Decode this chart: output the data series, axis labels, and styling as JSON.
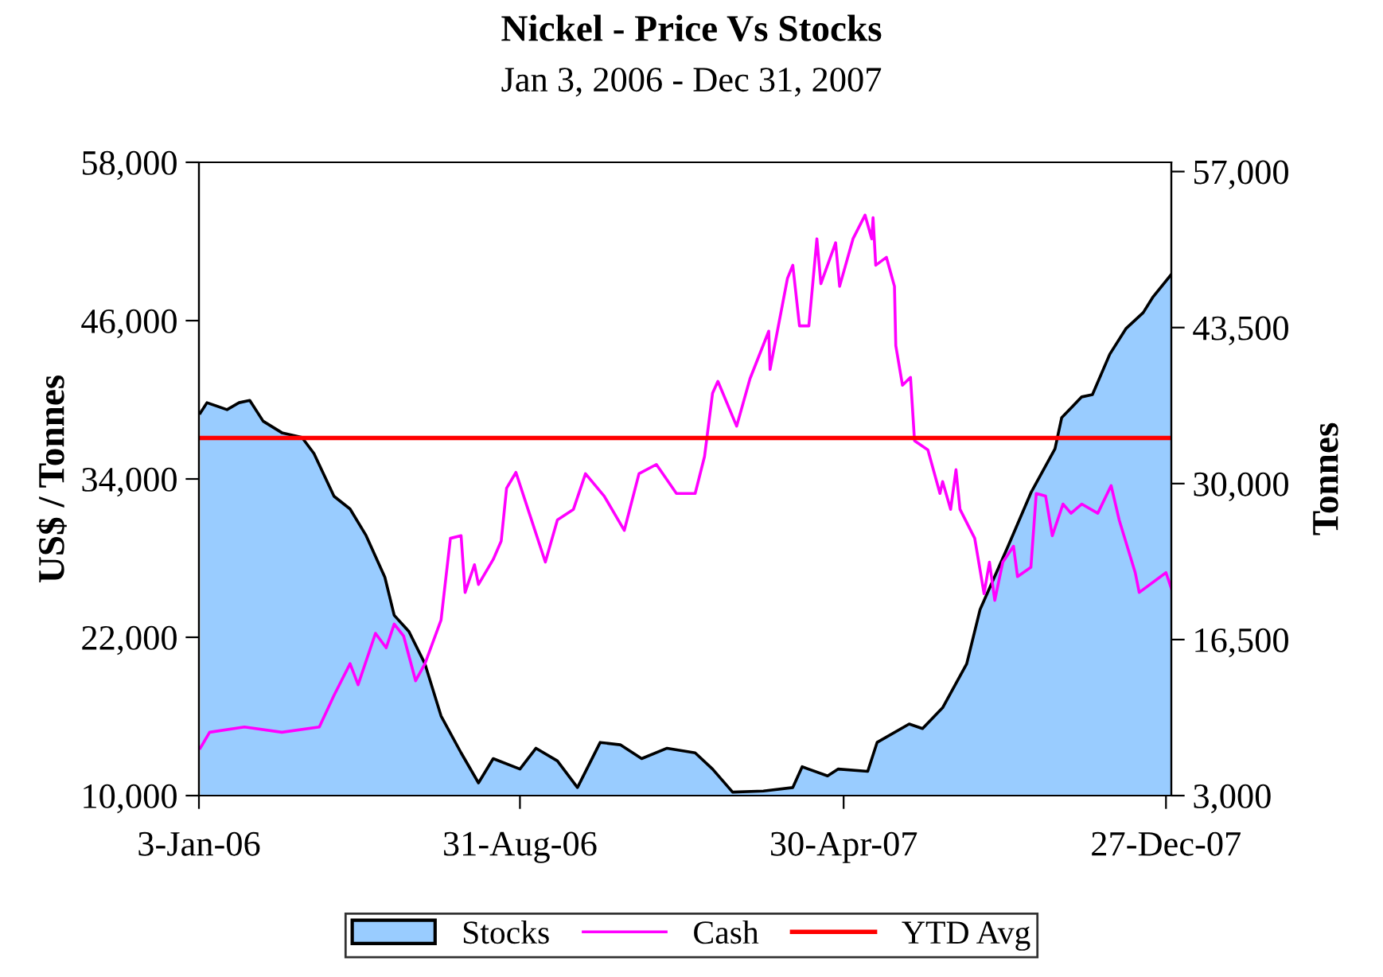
{
  "chart_data": {
    "type": "line",
    "title": "Nickel - Price Vs Stocks",
    "subtitle": "Jan 3, 2006 - Dec 31, 2007",
    "ylabel": "US$ / Tonnes",
    "y2label": "Tonnes",
    "xlim": [
      "2006-01-03",
      "2007-12-31"
    ],
    "xticks": [
      {
        "value": "2006-01-03",
        "label": "3-Jan-06"
      },
      {
        "value": "2006-08-31",
        "label": "31-Aug-06"
      },
      {
        "value": "2007-04-30",
        "label": "30-Apr-07"
      },
      {
        "value": "2007-12-27",
        "label": "27-Dec-07"
      }
    ],
    "ylim": [
      10000,
      58000
    ],
    "yticks": [
      {
        "value": 10000,
        "label": "10,000"
      },
      {
        "value": 22000,
        "label": "22,000"
      },
      {
        "value": 34000,
        "label": "34,000"
      },
      {
        "value": 46000,
        "label": "46,000"
      },
      {
        "value": 58000,
        "label": "58,000"
      }
    ],
    "y2lim": [
      3000,
      57800
    ],
    "y2ticks": [
      {
        "value": 3000,
        "label": "3,000"
      },
      {
        "value": 16500,
        "label": "16,500"
      },
      {
        "value": 30000,
        "label": "30,000"
      },
      {
        "value": 43500,
        "label": "43,500"
      },
      {
        "value": 57000,
        "label": "57,000"
      }
    ],
    "grid": false,
    "legend": "bottom",
    "marker": "none",
    "line_style": "solid",
    "series": [
      {
        "name": "Stocks",
        "type": "area",
        "axis": "y2",
        "color": "#99ccff",
        "x": [
          "2006-01-04",
          "2006-01-09",
          "2006-01-24",
          "2006-02-02",
          "2006-02-10",
          "2006-02-20",
          "2006-03-06",
          "2006-03-21",
          "2006-03-30",
          "2006-04-14",
          "2006-04-26",
          "2006-05-08",
          "2006-05-22",
          "2006-05-29",
          "2006-06-09",
          "2006-06-21",
          "2006-07-03",
          "2006-07-18",
          "2006-07-31",
          "2006-08-11",
          "2006-08-31",
          "2006-09-12",
          "2006-09-28",
          "2006-10-13",
          "2006-10-30",
          "2006-11-14",
          "2006-11-30",
          "2006-12-19",
          "2007-01-09",
          "2007-01-22",
          "2007-02-06",
          "2007-03-01",
          "2007-03-23",
          "2007-03-30",
          "2007-04-18",
          "2007-04-26",
          "2007-05-18",
          "2007-05-25",
          "2007-06-18",
          "2007-06-28",
          "2007-07-13",
          "2007-07-31",
          "2007-08-10",
          "2007-08-31",
          "2007-09-17",
          "2007-10-05",
          "2007-10-10",
          "2007-10-25",
          "2007-11-02",
          "2007-11-15",
          "2007-11-27",
          "2007-12-10",
          "2007-12-17",
          "2007-12-31"
        ],
        "values": [
          36100,
          37000,
          36400,
          37000,
          37200,
          35400,
          34400,
          34000,
          32600,
          28900,
          27800,
          25500,
          21900,
          18600,
          17200,
          14400,
          9900,
          6700,
          4100,
          6200,
          5300,
          7100,
          6000,
          3700,
          7600,
          7400,
          6200,
          7100,
          6700,
          5300,
          3300,
          3400,
          3700,
          5500,
          4700,
          5300,
          5100,
          7600,
          9200,
          8800,
          10600,
          14400,
          19100,
          24600,
          29200,
          33000,
          35700,
          37500,
          37700,
          41200,
          43400,
          44800,
          46100,
          48100
        ]
      },
      {
        "name": "Cash",
        "type": "line",
        "color": "#ff00ff",
        "x": [
          "2006-01-04",
          "2006-01-11",
          "2006-02-06",
          "2006-03-06",
          "2006-04-03",
          "2006-04-14",
          "2006-04-26",
          "2006-05-02",
          "2006-05-15",
          "2006-05-23",
          "2006-05-29",
          "2006-06-05",
          "2006-06-14",
          "2006-06-21",
          "2006-07-03",
          "2006-07-10",
          "2006-07-18",
          "2006-07-21",
          "2006-07-28",
          "2006-07-31",
          "2006-08-11",
          "2006-08-17",
          "2006-08-21",
          "2006-08-28",
          "2006-09-07",
          "2006-09-19",
          "2006-09-28",
          "2006-10-10",
          "2006-10-19",
          "2006-11-02",
          "2006-11-17",
          "2006-11-28",
          "2006-12-11",
          "2006-12-26",
          "2007-01-09",
          "2007-01-16",
          "2007-01-22",
          "2007-01-26",
          "2007-02-09",
          "2007-02-19",
          "2007-03-05",
          "2007-03-06",
          "2007-03-19",
          "2007-03-23",
          "2007-03-28",
          "2007-04-04",
          "2007-04-10",
          "2007-04-13",
          "2007-04-24",
          "2007-04-27",
          "2007-05-07",
          "2007-05-16",
          "2007-05-21",
          "2007-05-22",
          "2007-05-24",
          "2007-06-01",
          "2007-06-07",
          "2007-06-08",
          "2007-06-13",
          "2007-06-19",
          "2007-06-22",
          "2007-07-02",
          "2007-07-11",
          "2007-07-13",
          "2007-07-19",
          "2007-07-23",
          "2007-07-26",
          "2007-08-06",
          "2007-08-13",
          "2007-08-17",
          "2007-08-21",
          "2007-08-27",
          "2007-09-04",
          "2007-09-07",
          "2007-09-17",
          "2007-09-21",
          "2007-09-28",
          "2007-10-03",
          "2007-10-11",
          "2007-10-17",
          "2007-10-25",
          "2007-11-06",
          "2007-11-16",
          "2007-11-22",
          "2007-12-04",
          "2007-12-07",
          "2007-12-27",
          "2007-12-31"
        ],
        "values": [
          13600,
          14800,
          15200,
          14800,
          15200,
          17600,
          20000,
          18400,
          22300,
          21200,
          23000,
          22100,
          18700,
          20000,
          23300,
          29500,
          29700,
          25400,
          27500,
          26000,
          27900,
          29300,
          33300,
          34500,
          31400,
          27700,
          30900,
          31700,
          34400,
          32700,
          30100,
          34400,
          35100,
          32900,
          32900,
          35700,
          40500,
          41400,
          38000,
          41600,
          45200,
          42300,
          49200,
          50200,
          45600,
          45600,
          52200,
          48800,
          51900,
          48600,
          52200,
          54000,
          52200,
          53800,
          50200,
          50800,
          48600,
          44100,
          41100,
          41700,
          36900,
          36200,
          32900,
          33800,
          31700,
          34700,
          31700,
          29500,
          25300,
          27700,
          24800,
          27700,
          28900,
          26600,
          27300,
          32900,
          32700,
          29700,
          32100,
          31400,
          32100,
          31400,
          33500,
          30900,
          26900,
          25400,
          26900,
          25700
        ]
      }
    ],
    "ref_lines": [
      {
        "axis": "y",
        "value": 37100,
        "label": "YTD Avg",
        "color": "#ff0000",
        "line_style": "solid"
      }
    ]
  }
}
